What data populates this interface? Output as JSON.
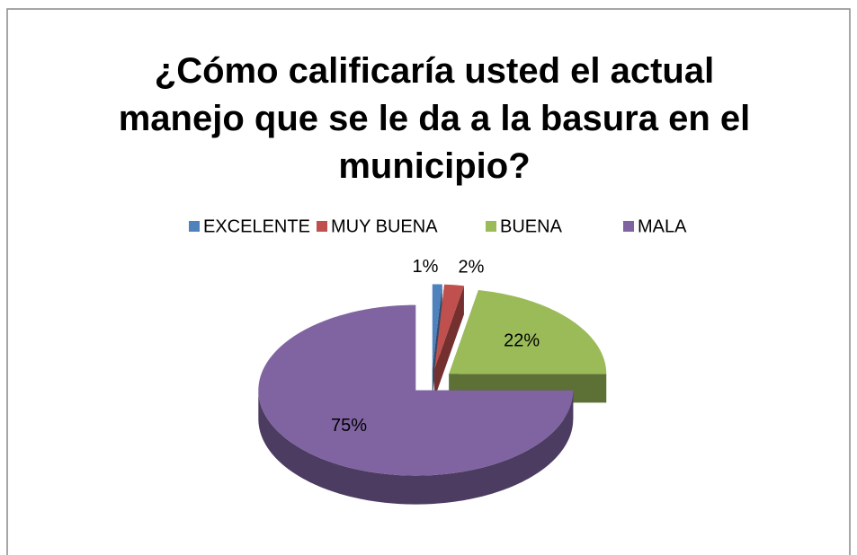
{
  "chart_data": {
    "type": "pie",
    "title": [
      "¿Cómo calificaría usted el actual",
      "manejo que se le da a la basura en el",
      "municipio?"
    ],
    "categories": [
      "EXCELENTE",
      "MUY BUENA",
      "BUENA",
      "MALA"
    ],
    "values": [
      1,
      2,
      22,
      75
    ],
    "value_labels": [
      "1%",
      "2%",
      "22%",
      "75%"
    ],
    "colors": [
      "#4f81bd",
      "#c0504d",
      "#9bbb59",
      "#8064a2"
    ],
    "legend": "top"
  }
}
